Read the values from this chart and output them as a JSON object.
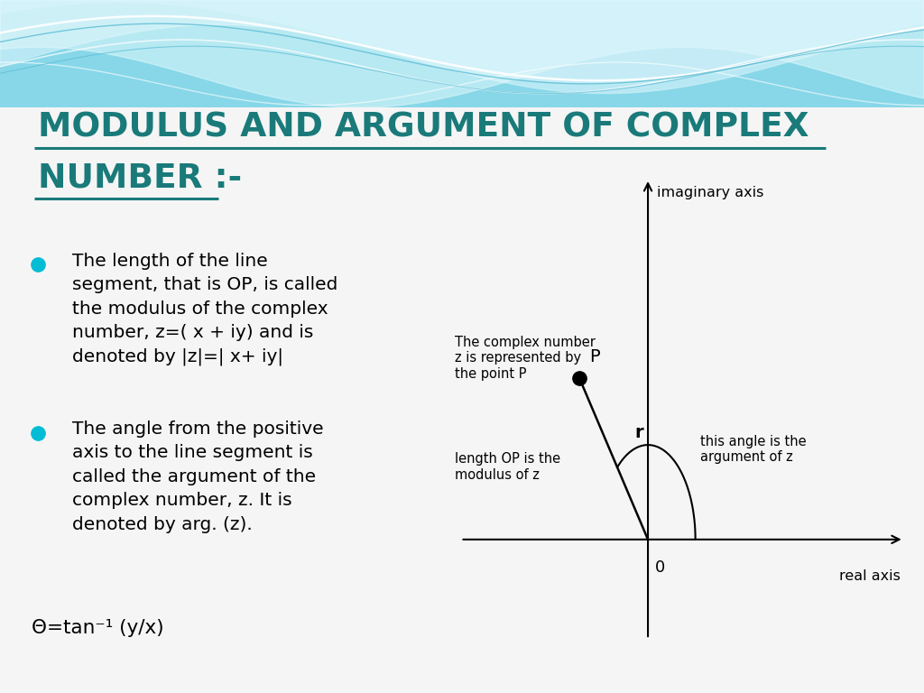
{
  "title_line1": "MODULUS AND ARGUMENT OF COMPLEX",
  "title_line2": "NUMBER :-",
  "title_color": "#1a7a7a",
  "bg_color": "#f5f5f5",
  "wave_bg_color": "#87d7e8",
  "bullet_color": "#00bcd4",
  "bullet1_lines": [
    "The length of the line",
    "segment, that is OP, is called",
    "the modulus of the complex",
    "number, z=( x + iy) and is",
    "denoted by |z|=| x+ iy|"
  ],
  "bullet2_lines": [
    "The angle from the positive",
    "axis to the line segment is",
    "called the argument of the",
    "complex number, z. It is",
    "denoted by arg. (z)."
  ],
  "theta_line": "Θ=tan⁻¹ (y/x)",
  "diagram": {
    "point_P": [
      -0.55,
      0.65
    ],
    "label_P": "P",
    "label_r": "r",
    "label_origin": "0",
    "x_axis_label": "real axis",
    "y_axis_label": "imaginary axis",
    "note_text": "The complex number\nz is represented by\nthe point P",
    "modulus_text": "length OP is the\nmodulus of z",
    "argument_text": "this angle is the\nargument of z"
  }
}
